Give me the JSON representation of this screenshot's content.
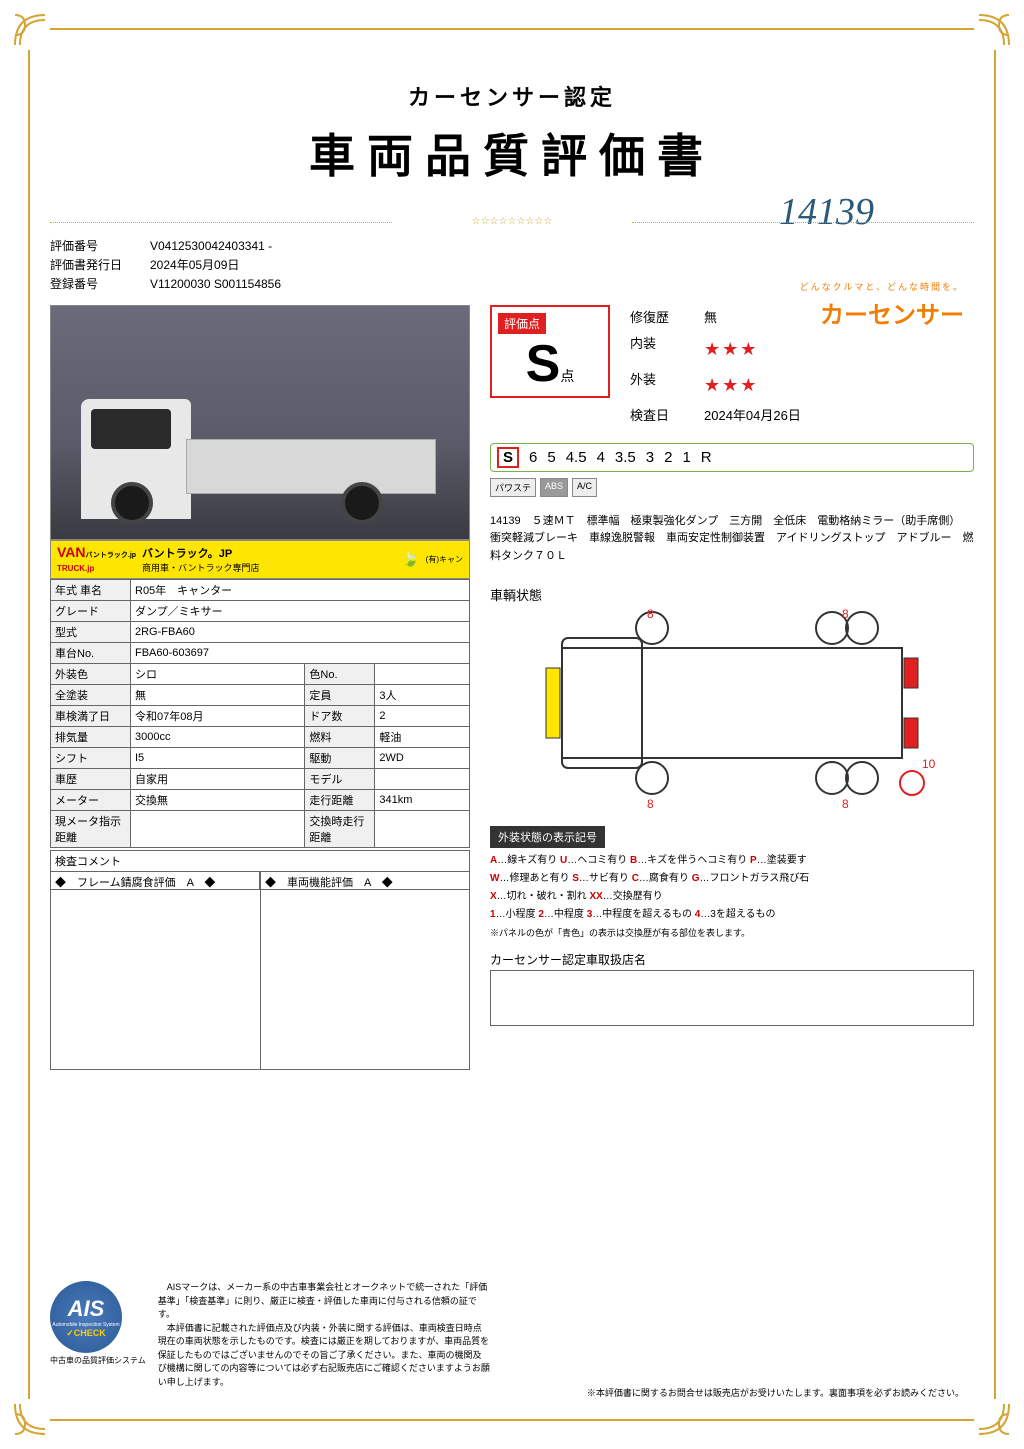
{
  "header": {
    "subtitle": "カーセンサー認定",
    "main_title": "車両品質評価書",
    "handwritten": "14139",
    "stars": "☆☆☆☆☆☆☆☆☆"
  },
  "brand": {
    "tagline": "どんなクルマと、どんな時間を。",
    "logo": "カーセンサー"
  },
  "info": {
    "eval_no_label": "評価番号",
    "eval_no": "V0412530042403341  -",
    "issue_label": "評価書発行日",
    "issue_date": "2024年05月09日",
    "reg_label": "登録番号",
    "reg_no": "V11200030 S001154856"
  },
  "banner": {
    "logo_top": "VAN",
    "logo_bottom": "TRUCK.jp",
    "ruby": "バントラック.jp",
    "text1": "バントラック。JP",
    "text2": "商用車・バントラック専門店",
    "text3": "(有)キャン"
  },
  "spec": [
    [
      "年式 車名",
      "R05年　キャンター",
      "",
      ""
    ],
    [
      "グレード",
      "ダンプ／ミキサー",
      "",
      ""
    ],
    [
      "型式",
      "2RG-FBA60",
      "",
      ""
    ],
    [
      "車台No.",
      "FBA60-603697",
      "",
      ""
    ],
    [
      "外装色",
      "シロ",
      "色No.",
      ""
    ],
    [
      "全塗装",
      "無",
      "定員",
      "3人"
    ],
    [
      "車検満了日",
      "令和07年08月",
      "ドア数",
      "2"
    ],
    [
      "排気量",
      "3000cc",
      "燃料",
      "軽油"
    ],
    [
      "シフト",
      "I5",
      "駆動",
      "2WD"
    ],
    [
      "車歴",
      "自家用",
      "モデル",
      ""
    ],
    [
      "メーター",
      "交換無",
      "走行距離",
      "341km"
    ],
    [
      "現メータ指示距離",
      "",
      "交換時走行距離",
      ""
    ]
  ],
  "comment": {
    "header": "検査コメント",
    "left": "◆　フレーム錆腐食評価　A　◆",
    "right": "◆　車両機能評価　A　◆"
  },
  "score": {
    "label": "評価点",
    "value": "S",
    "ten": "点",
    "rows": [
      {
        "label": "修復歴",
        "value": "無",
        "stars": ""
      },
      {
        "label": "内装",
        "value": "",
        "stars": "★★★"
      },
      {
        "label": "外装",
        "value": "",
        "stars": "★★★"
      },
      {
        "label": "検査日",
        "value": "2024年04月26日",
        "stars": ""
      }
    ]
  },
  "scale": [
    "S",
    "6",
    "5",
    "4.5",
    "4",
    "3.5",
    "3",
    "2",
    "1",
    "R"
  ],
  "badges": [
    "パワステ",
    "ABS",
    "A/C"
  ],
  "description": "14139　５速ＭＴ　標準幅　極東製強化ダンプ　三方開　全低床　電動格納ミラー（助手席側）　衝突軽減ブレーキ　車線逸脱警報　車両安定性制御装置　アイドリングストップ　アドブルー　燃料タンク７０Ｌ",
  "diagram": {
    "label": "車輌状態",
    "marks": [
      "8",
      "8",
      "8",
      "8",
      "10"
    ]
  },
  "legend": {
    "header": "外装状態の表示記号",
    "lines": [
      "A…線キズ有り U…ヘコミ有り B…キズを伴うヘコミ有り P…塗装要す",
      "W…修理あと有り S…サビ有り C…腐食有り G…フロントガラス飛び石",
      "X…切れ・破れ・割れ XX…交換歴有り",
      "1…小程度 2…中程度 3…中程度を超えるもの 4…3を超えるもの"
    ],
    "note": "※パネルの色が「青色」の表示は交換歴が有る部位を表します。"
  },
  "dealer": {
    "label": "カーセンサー認定車取扱店名"
  },
  "ais": {
    "logo_big": "AIS",
    "logo_sub": "Automobile Inspection System",
    "logo_check": "✓CHECK",
    "caption": "中古車の品質評価システム",
    "text": "　AISマークは、メーカー系の中古車事業会社とオークネットで統一された「評価基準」「検査基準」に則り、厳正に検査・評価した車両に付与される信頼の証です。\n　本評価書に記載された評価点及び内装・外装に関する評価は、車両検査日時点現在の車両状態を示したものです。検査には厳正を期しておりますが、車両品質を保証したものではございませんのでその旨ご了承ください。また、車両の機関及び機構に関しての内容等については必ず右記販売店にご確認くださいますようお願い申し上げます。"
  },
  "footer": "※本評価書に関するお問合せは販売店がお受けいたします。裏面事項を必ずお読みください。",
  "colors": {
    "gold": "#d4a534",
    "red": "#e02020",
    "orange": "#f27d00"
  }
}
